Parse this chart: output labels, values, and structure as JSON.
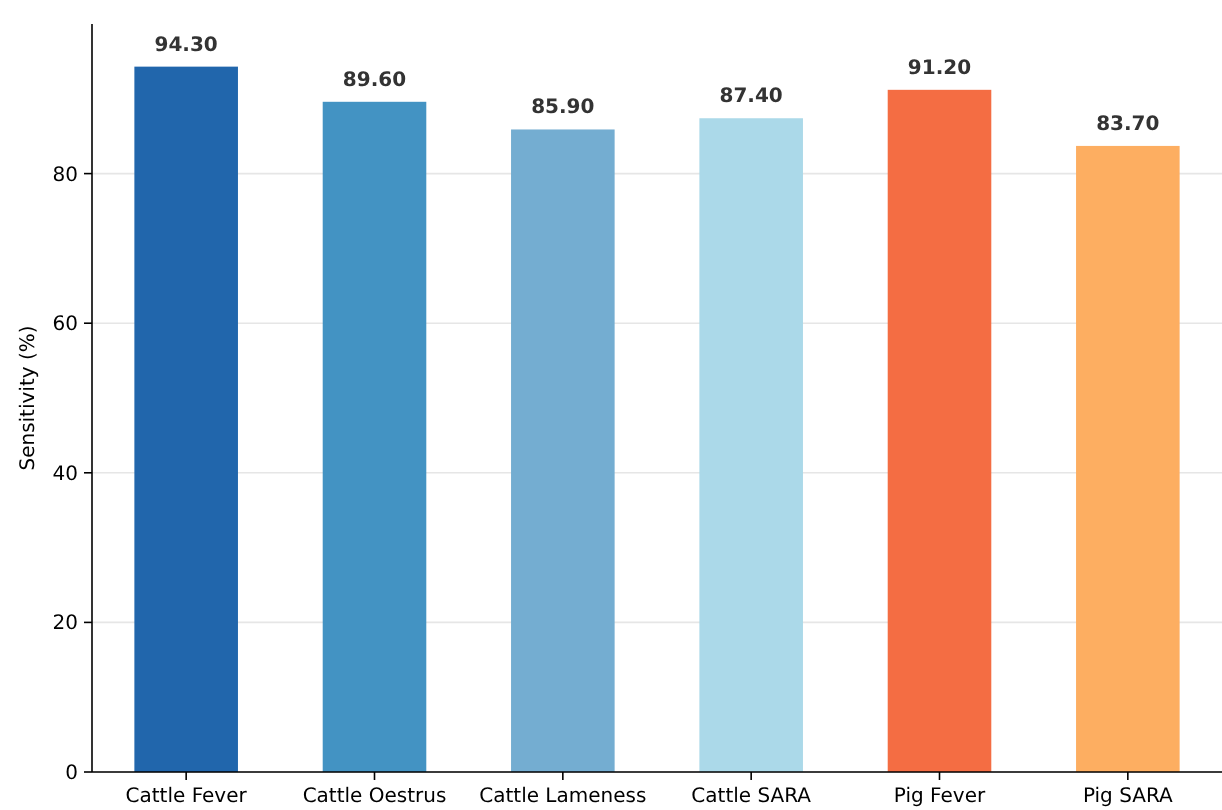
{
  "chart_data": {
    "type": "bar",
    "ylabel": "Sensitivity (%)",
    "categories": [
      "Cattle Fever",
      "Cattle Oestrus",
      "Cattle Lameness",
      "Cattle SARA",
      "Pig Fever",
      "Pig SARA"
    ],
    "values": [
      94.3,
      89.6,
      85.9,
      87.4,
      91.2,
      83.7
    ],
    "value_labels": [
      "94.30",
      "89.60",
      "85.90",
      "87.40",
      "91.20",
      "83.70"
    ],
    "colors": [
      "#2166ac",
      "#4393c3",
      "#74add1",
      "#abd9e9",
      "#f46d43",
      "#fdae61"
    ],
    "ylim": [
      0,
      100
    ],
    "yticks": [
      0,
      20,
      40,
      60,
      80
    ],
    "grid": "y"
  }
}
